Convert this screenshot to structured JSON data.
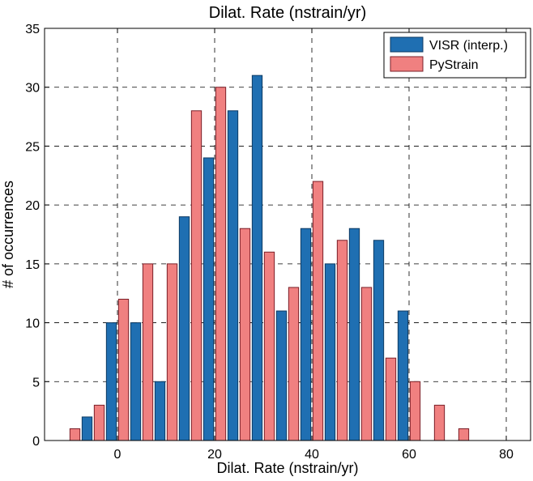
{
  "chart_data": {
    "type": "bar",
    "title": "Dilat. Rate (nstrain/yr)",
    "xlabel": "Dilat. Rate (nstrain/yr)",
    "ylabel": "# of occurrences",
    "xlim": [
      -15,
      85
    ],
    "ylim": [
      0,
      35
    ],
    "xticks": [
      0,
      20,
      40,
      60,
      80
    ],
    "yticks": [
      0,
      5,
      10,
      15,
      20,
      25,
      30,
      35
    ],
    "grid": true,
    "legend_position": "top-right",
    "bin_width": 5,
    "series": [
      {
        "name": "VISR (interp.)",
        "color": "#1f6fb2",
        "x": [
          -10,
          -5,
          0,
          5,
          10,
          15,
          20,
          25,
          30,
          35,
          40,
          45,
          50,
          55,
          60,
          65,
          70,
          75,
          80
        ],
        "values": [
          0,
          2,
          10,
          10,
          5,
          19,
          24,
          28,
          31,
          11,
          18,
          15,
          18,
          17,
          11,
          0,
          0,
          0,
          0
        ]
      },
      {
        "name": "PyStrain",
        "color": "#f08080",
        "x": [
          -10,
          -5,
          0,
          5,
          10,
          15,
          20,
          25,
          30,
          35,
          40,
          45,
          50,
          55,
          60,
          65,
          70,
          75,
          80
        ],
        "values": [
          1,
          3,
          12,
          15,
          15,
          28,
          30,
          18,
          16,
          13,
          22,
          17,
          13,
          7,
          5,
          3,
          1,
          0,
          0
        ]
      }
    ]
  }
}
